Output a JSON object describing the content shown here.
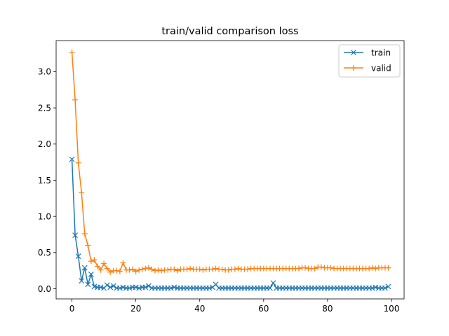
{
  "chart_data": {
    "type": "line",
    "title": "train/valid comparison loss",
    "xlabel": "",
    "ylabel": "",
    "xlim": [
      -4.95,
      103.95
    ],
    "ylim": [
      -0.14,
      3.43
    ],
    "xticks": [
      0,
      20,
      40,
      60,
      80,
      100
    ],
    "yticks": [
      0.0,
      0.5,
      1.0,
      1.5,
      2.0,
      2.5,
      3.0
    ],
    "grid": false,
    "legend_position": "top-right",
    "series": [
      {
        "name": "train",
        "color": "#1f77b4",
        "marker": "x",
        "values": [
          1.79,
          0.74,
          0.45,
          0.11,
          0.29,
          0.06,
          0.2,
          0.03,
          0.02,
          0.02,
          0.01,
          0.05,
          0.02,
          0.04,
          0.01,
          0.01,
          0.02,
          0.01,
          0.01,
          0.02,
          0.02,
          0.01,
          0.02,
          0.02,
          0.04,
          0.01,
          0.01,
          0.01,
          0.01,
          0.01,
          0.01,
          0.01,
          0.02,
          0.01,
          0.01,
          0.01,
          0.01,
          0.01,
          0.01,
          0.01,
          0.01,
          0.01,
          0.01,
          0.01,
          0.02,
          0.06,
          0.01,
          0.01,
          0.01,
          0.01,
          0.01,
          0.01,
          0.01,
          0.01,
          0.01,
          0.01,
          0.01,
          0.01,
          0.01,
          0.01,
          0.01,
          0.01,
          0.01,
          0.08,
          0.01,
          0.01,
          0.01,
          0.01,
          0.01,
          0.01,
          0.01,
          0.01,
          0.01,
          0.01,
          0.01,
          0.01,
          0.01,
          0.01,
          0.01,
          0.01,
          0.01,
          0.01,
          0.01,
          0.01,
          0.01,
          0.01,
          0.01,
          0.01,
          0.01,
          0.01,
          0.01,
          0.01,
          0.01,
          0.01,
          0.01,
          0.02,
          0.01,
          0.01,
          0.01,
          0.03
        ]
      },
      {
        "name": "valid",
        "color": "#ff7f0e",
        "marker": "+",
        "values": [
          3.27,
          2.61,
          1.74,
          1.33,
          0.76,
          0.6,
          0.38,
          0.4,
          0.31,
          0.26,
          0.35,
          0.28,
          0.23,
          0.25,
          0.25,
          0.24,
          0.36,
          0.26,
          0.26,
          0.27,
          0.24,
          0.26,
          0.27,
          0.28,
          0.29,
          0.27,
          0.25,
          0.26,
          0.25,
          0.26,
          0.26,
          0.27,
          0.27,
          0.25,
          0.27,
          0.27,
          0.27,
          0.28,
          0.27,
          0.27,
          0.27,
          0.26,
          0.27,
          0.27,
          0.27,
          0.28,
          0.27,
          0.27,
          0.26,
          0.26,
          0.27,
          0.27,
          0.28,
          0.27,
          0.27,
          0.27,
          0.28,
          0.28,
          0.28,
          0.28,
          0.28,
          0.28,
          0.28,
          0.28,
          0.28,
          0.28,
          0.28,
          0.28,
          0.28,
          0.28,
          0.28,
          0.28,
          0.29,
          0.29,
          0.28,
          0.28,
          0.28,
          0.3,
          0.3,
          0.29,
          0.29,
          0.29,
          0.28,
          0.28,
          0.28,
          0.28,
          0.28,
          0.28,
          0.28,
          0.28,
          0.28,
          0.28,
          0.28,
          0.28,
          0.29,
          0.28,
          0.29,
          0.29,
          0.29,
          0.29
        ]
      }
    ]
  }
}
